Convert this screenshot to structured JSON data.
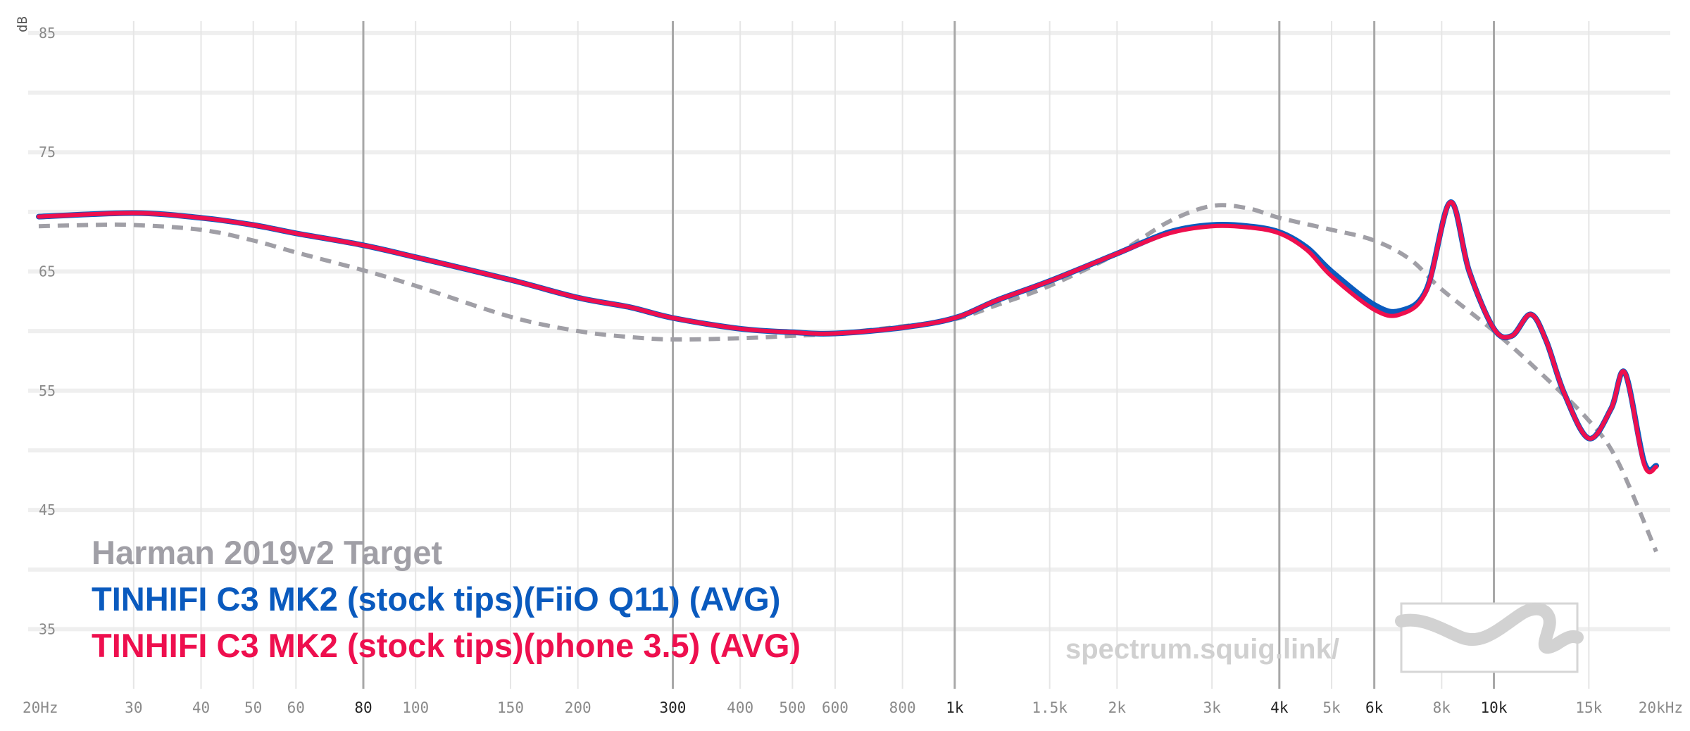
{
  "watermark": {
    "text": "spectrum.squig.link/"
  },
  "chart_data": {
    "type": "line",
    "ylabel": "dB",
    "xscale": "log",
    "xlim": [
      20,
      20000
    ],
    "ylim": [
      30,
      86
    ],
    "grid": true,
    "legend_position": "bottom-left",
    "y_ticks": [
      85,
      75,
      65,
      55,
      45,
      35
    ],
    "x_ticks": [
      {
        "value": 20,
        "label": "20Hz"
      },
      {
        "value": 30,
        "label": "30"
      },
      {
        "value": 40,
        "label": "40"
      },
      {
        "value": 50,
        "label": "50"
      },
      {
        "value": 60,
        "label": "60"
      },
      {
        "value": 80,
        "label": "80"
      },
      {
        "value": 100,
        "label": "100"
      },
      {
        "value": 150,
        "label": "150"
      },
      {
        "value": 200,
        "label": "200"
      },
      {
        "value": 300,
        "label": "300"
      },
      {
        "value": 400,
        "label": "400"
      },
      {
        "value": 500,
        "label": "500"
      },
      {
        "value": 600,
        "label": "600"
      },
      {
        "value": 800,
        "label": "800"
      },
      {
        "value": 1000,
        "label": "1k"
      },
      {
        "value": 1500,
        "label": "1.5k"
      },
      {
        "value": 2000,
        "label": "2k"
      },
      {
        "value": 3000,
        "label": "3k"
      },
      {
        "value": 4000,
        "label": "4k"
      },
      {
        "value": 5000,
        "label": "5k"
      },
      {
        "value": 6000,
        "label": "6k"
      },
      {
        "value": 8000,
        "label": "8k"
      },
      {
        "value": 10000,
        "label": "10k"
      },
      {
        "value": 15000,
        "label": "15k"
      },
      {
        "value": 20000,
        "label": "20kHz"
      }
    ],
    "series": [
      {
        "name": "Harman 2019v2 Target",
        "color": "#a09fa6",
        "style": "dashed",
        "x": [
          20,
          25,
          30,
          40,
          50,
          60,
          80,
          100,
          150,
          200,
          250,
          300,
          400,
          500,
          600,
          800,
          1000,
          1200,
          1500,
          2000,
          2500,
          3000,
          3500,
          4000,
          5000,
          6000,
          7000,
          8000,
          10000,
          12000,
          15000,
          17000,
          20000
        ],
        "y": [
          68.8,
          68.9,
          68.9,
          68.5,
          67.6,
          66.6,
          65.1,
          63.8,
          61.2,
          60.0,
          59.5,
          59.3,
          59.4,
          59.6,
          59.8,
          60.4,
          61.0,
          62.2,
          63.8,
          66.5,
          69.2,
          70.5,
          70.3,
          69.5,
          68.5,
          67.6,
          66.0,
          63.5,
          60.0,
          56.8,
          52.5,
          49.0,
          41.5
        ]
      },
      {
        "name": "TINHIFI C3 MK2 (stock tips)(FiiO Q11) (AVG)",
        "color": "#0a5abe",
        "style": "solid",
        "x": [
          20,
          30,
          40,
          50,
          60,
          80,
          100,
          150,
          200,
          250,
          300,
          400,
          500,
          600,
          800,
          1000,
          1200,
          1500,
          2000,
          2500,
          3000,
          3500,
          4000,
          4500,
          5000,
          6000,
          6700,
          7500,
          8300,
          9000,
          10000,
          10800,
          11700,
          12500,
          13500,
          15000,
          16500,
          17500,
          19000,
          20000
        ],
        "y": [
          69.6,
          69.9,
          69.5,
          68.9,
          68.2,
          67.2,
          66.2,
          64.3,
          62.8,
          62.0,
          61.1,
          60.2,
          59.9,
          59.8,
          60.3,
          61.1,
          62.6,
          64.2,
          66.5,
          68.3,
          68.9,
          68.8,
          68.3,
          67.0,
          65.0,
          62.2,
          61.7,
          63.5,
          70.8,
          65.0,
          60.2,
          59.6,
          61.4,
          59.2,
          54.8,
          51.0,
          53.5,
          56.5,
          49.0,
          48.7
        ]
      },
      {
        "name": "TINHIFI C3 MK2 (stock tips)(phone 3.5) (AVG)",
        "color": "#ee0f4e",
        "style": "solid",
        "x": [
          20,
          30,
          40,
          50,
          60,
          80,
          100,
          150,
          200,
          250,
          300,
          400,
          500,
          600,
          800,
          1000,
          1200,
          1500,
          2000,
          2500,
          3000,
          3500,
          4000,
          4500,
          5000,
          6000,
          6700,
          7500,
          8300,
          9000,
          10000,
          10800,
          11700,
          12500,
          13500,
          15000,
          16500,
          17500,
          19000,
          20000
        ],
        "y": [
          69.6,
          69.9,
          69.5,
          68.9,
          68.2,
          67.2,
          66.2,
          64.3,
          62.8,
          62.0,
          61.1,
          60.2,
          59.9,
          59.8,
          60.3,
          61.1,
          62.6,
          64.2,
          66.5,
          68.2,
          68.8,
          68.7,
          68.2,
          66.8,
          64.6,
          61.8,
          61.4,
          63.4,
          70.8,
          65.0,
          60.2,
          59.6,
          61.4,
          59.2,
          54.8,
          51.0,
          53.5,
          56.5,
          48.8,
          48.6
        ]
      }
    ]
  }
}
